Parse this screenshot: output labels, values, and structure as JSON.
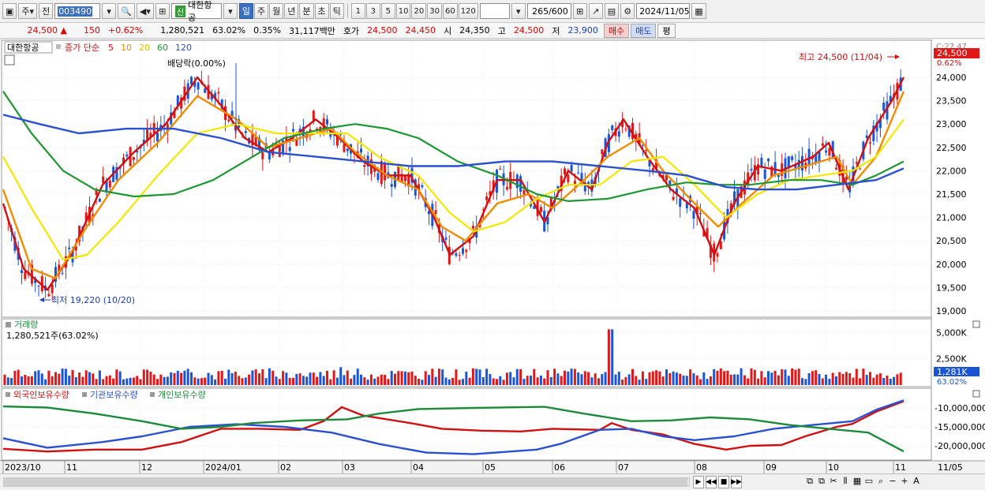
{
  "toolbar": {
    "period_type": "주",
    "prev_label": "전",
    "code": "003490",
    "stock_badge": "신",
    "stock_name": "대한항공",
    "unit_buttons": [
      "일",
      "주",
      "월",
      "년",
      "분",
      "초",
      "틱"
    ],
    "period_buttons": [
      "1",
      "3",
      "5",
      "10",
      "20",
      "30",
      "60",
      "120"
    ],
    "count": "265",
    "count_max": "/600",
    "date": "2024/11/05"
  },
  "quote": {
    "price": "24,500 ▲",
    "change": "150",
    "change_pct": "+0.62%",
    "volume": "1,280,521",
    "vol_ratio": "63.02%",
    "turnover": "0.35%",
    "amount": "31,117백만",
    "ask_label": "호가",
    "ask": "24,500",
    "bid": "24,450",
    "open_label": "시",
    "open": "24,350",
    "high_label": "고",
    "high": "24,500",
    "low_label": "저",
    "low": "23,900",
    "buy_label": "매수",
    "sell_label": "매도",
    "eval_label": "평"
  },
  "price_panel": {
    "stock_label": "대한항공",
    "ma_label": "종가 단순",
    "ma_periods": [
      "5",
      "10",
      "20",
      "60",
      "120"
    ],
    "ma_colors": [
      "#d01010",
      "#f08c00",
      "#f5e600",
      "#1e9632",
      "#2a50d0"
    ],
    "y_ticks": [
      "24,000",
      "23,500",
      "23,000",
      "22,500",
      "22,000",
      "21,500",
      "21,000",
      "20,500",
      "20,000",
      "19,500",
      "19,000"
    ],
    "current_price": "24,500",
    "current_pct": "0.62%",
    "top_clipped": "C:27.47",
    "dividend": "배당락(0.00%)",
    "high_note": "최고 24,500 (11/04)",
    "low_note": "최저 19,220 (10/20)"
  },
  "volume_panel": {
    "title": "거래량",
    "value": "1,280,521주(63.02%)",
    "y_ticks": [
      "5,000K",
      "2,500K"
    ],
    "current": "1,281K",
    "current_pct": "63.02%"
  },
  "holding_panel": {
    "series": [
      "외국인보유수량",
      "기관보유수량",
      "개인보유수량"
    ],
    "colors": [
      "#d01010",
      "#2a50d0",
      "#1e8a3c"
    ],
    "y_ticks": [
      "-10,000,000",
      "-15,000,000",
      "-20,000,000"
    ]
  },
  "x_axis": [
    "2023/10",
    "11",
    "12",
    "2024/01",
    "02",
    "03",
    "04",
    "05",
    "06",
    "07",
    "08",
    "09",
    "10",
    "11",
    "11/05"
  ]
}
